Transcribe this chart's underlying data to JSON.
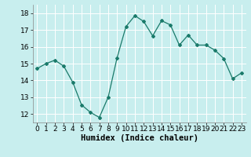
{
  "x": [
    0,
    1,
    2,
    3,
    4,
    5,
    6,
    7,
    8,
    9,
    10,
    11,
    12,
    13,
    14,
    15,
    16,
    17,
    18,
    19,
    20,
    21,
    22,
    23
  ],
  "y": [
    14.7,
    15.0,
    15.2,
    14.85,
    13.9,
    12.55,
    12.1,
    11.8,
    13.0,
    15.35,
    17.2,
    17.85,
    17.5,
    16.65,
    17.55,
    17.3,
    16.1,
    16.7,
    16.1,
    16.1,
    15.8,
    15.3,
    14.1,
    14.45
  ],
  "line_color": "#1a7a6a",
  "marker": "D",
  "marker_size": 2.0,
  "background_color": "#c8eeee",
  "grid_color": "#ffffff",
  "xlabel": "Humidex (Indice chaleur)",
  "xlim": [
    -0.5,
    23.5
  ],
  "ylim": [
    11.5,
    18.5
  ],
  "yticks": [
    12,
    13,
    14,
    15,
    16,
    17,
    18
  ],
  "xticks": [
    0,
    1,
    2,
    3,
    4,
    5,
    6,
    7,
    8,
    9,
    10,
    11,
    12,
    13,
    14,
    15,
    16,
    17,
    18,
    19,
    20,
    21,
    22,
    23
  ],
  "xlabel_fontsize": 7.5,
  "tick_fontsize": 6.5
}
